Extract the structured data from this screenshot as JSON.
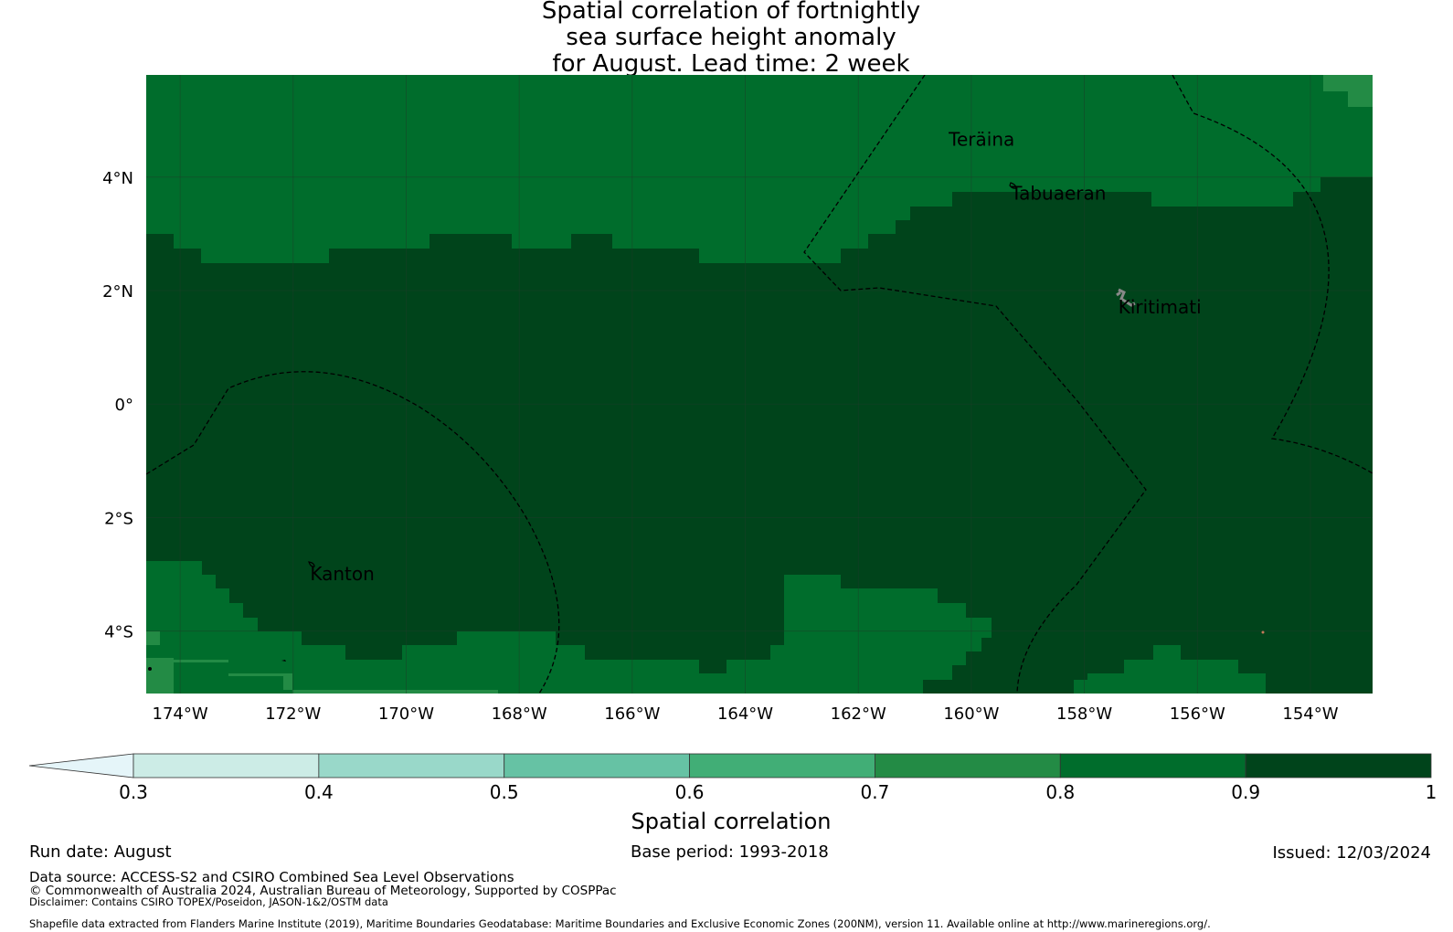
{
  "title": {
    "line1": "Spatial correlation of fortnightly",
    "line2": "sea surface height anomaly",
    "line3": "for August. Lead time: 2 week"
  },
  "map": {
    "lon_range": [
      -174.6,
      -152.9
    ],
    "lat_range": [
      -5.1,
      5.8
    ],
    "lon_ticks": [
      {
        "value": -174,
        "label": "174°W"
      },
      {
        "value": -172,
        "label": "172°W"
      },
      {
        "value": -170,
        "label": "170°W"
      },
      {
        "value": -168,
        "label": "168°W"
      },
      {
        "value": -166,
        "label": "166°W"
      },
      {
        "value": -164,
        "label": "164°W"
      },
      {
        "value": -162,
        "label": "162°W"
      },
      {
        "value": -160,
        "label": "160°W"
      },
      {
        "value": -158,
        "label": "158°W"
      },
      {
        "value": -156,
        "label": "156°W"
      },
      {
        "value": -154,
        "label": "154°W"
      }
    ],
    "lat_ticks": [
      {
        "value": 4,
        "label": "4°N"
      },
      {
        "value": 2,
        "label": "2°N"
      },
      {
        "value": 0,
        "label": "0°"
      },
      {
        "value": -2,
        "label": "2°S"
      },
      {
        "value": -4,
        "label": "4°S"
      }
    ],
    "colors": {
      "corr_0.7_0.8": "#238b45",
      "corr_0.8_0.9": "#006d2c",
      "corr_0.9_1.0": "#00441b",
      "gridline": "#1f3d2a",
      "eez_boundary": "#000000"
    },
    "places": [
      {
        "name": "Teräina",
        "lon": -160.4,
        "lat": 4.55
      },
      {
        "name": "Tabuaeran",
        "lon": -159.3,
        "lat": 3.6
      },
      {
        "name": "Kiritimati",
        "lon": -157.4,
        "lat": 1.6
      },
      {
        "name": "Kanton",
        "lon": -171.7,
        "lat": -3.1
      }
    ]
  },
  "colorbar": {
    "title": "Spatial correlation",
    "extend": "min",
    "ticks": [
      "0.3",
      "0.4",
      "0.5",
      "0.6",
      "0.7",
      "0.8",
      "0.9",
      "1"
    ],
    "colors": [
      "#ccece6",
      "#99d8c9",
      "#66c2a4",
      "#41ae76",
      "#238b45",
      "#006d2c",
      "#00441b"
    ],
    "under_color": "#e5f5f9"
  },
  "footer": {
    "run_date": "Run date: August",
    "base_period": "Base period: 1993-2018",
    "issued": "Issued: 12/03/2024",
    "data_source": "Data source: ACCESS-S2 and CSIRO Combined Sea Level Observations",
    "copyright": "© Commonwealth of Australia 2024, Australian Bureau of Meteorology, Supported by COSPPac",
    "disclaimer": "Disclaimer: Contains CSIRO TOPEX/Poseidon, JASON-1&2/OSTM data",
    "shapefile": "Shapefile data extracted from Flanders Marine Institute (2019), Maritime Boundaries Geodatabase: Maritime Boundaries and Exclusive Economic Zones (200NM), version 11. Available online at http://www.marineregions.org/."
  }
}
